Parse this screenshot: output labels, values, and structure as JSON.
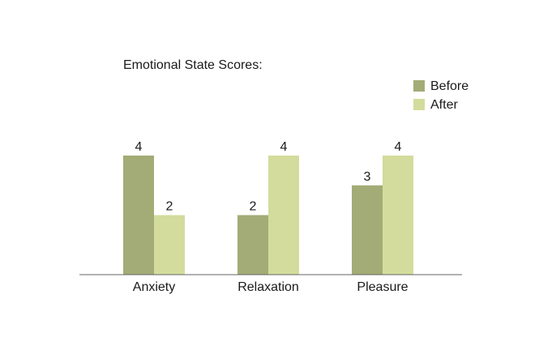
{
  "chart_data": {
    "type": "bar",
    "title": "Emotional State Scores:",
    "categories": [
      "Anxiety",
      "Relaxation",
      "Pleasure"
    ],
    "series": [
      {
        "name": "Before",
        "values": [
          4,
          2,
          3
        ],
        "color": "#a3ab76"
      },
      {
        "name": "After",
        "values": [
          2,
          4,
          4
        ],
        "color": "#d3dc9c"
      }
    ],
    "xlabel": "",
    "ylabel": "",
    "ylim": [
      0,
      4
    ],
    "grid": false,
    "legend": "top-right",
    "data_labels": true
  }
}
